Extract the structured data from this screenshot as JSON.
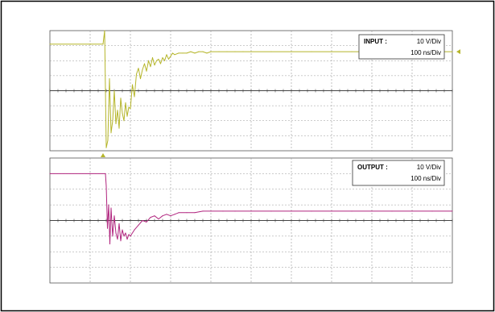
{
  "chart_data": [
    {
      "type": "line",
      "name_label": "INPUT :",
      "volts_label": "10 V/Div",
      "time_label": "100 ns/Div",
      "trace_color": "#b5b52a",
      "grid": true,
      "x_divisions": 10,
      "y_divisions": 8,
      "x_unit": "ns",
      "y_unit": "V",
      "xlim": [
        0,
        1000
      ],
      "ylim": [
        -40,
        40
      ],
      "series": [
        {
          "x": [
            0,
            100,
            132,
            136,
            140,
            144,
            148,
            152,
            156,
            160,
            164,
            168,
            172,
            176,
            180,
            184,
            188,
            192,
            196,
            200,
            205,
            210,
            215,
            220,
            225,
            230,
            235,
            240,
            245,
            250,
            255,
            260,
            265,
            270,
            275,
            280,
            285,
            290,
            295,
            300,
            305,
            310,
            320,
            330,
            340,
            350,
            360,
            370,
            380,
            390,
            400,
            420,
            440,
            460,
            480,
            500,
            550,
            600,
            650,
            700,
            750,
            800,
            850,
            900,
            950,
            1000
          ],
          "y": [
            31,
            31,
            31,
            40,
            -38,
            -33,
            8,
            -28,
            -20,
            0,
            -22,
            -13,
            -25,
            -5,
            -15,
            -20,
            -8,
            -17,
            -11,
            -12,
            4,
            -4,
            11,
            15,
            8,
            14,
            18,
            13,
            20,
            16,
            22,
            17,
            20,
            21,
            18,
            22,
            20,
            24,
            21,
            23,
            25,
            24,
            25,
            25,
            25,
            26,
            25,
            26,
            26,
            25,
            26,
            26,
            26,
            26,
            26,
            26,
            26,
            26,
            26,
            26,
            26,
            26,
            26,
            26,
            26,
            26
          ]
        }
      ]
    },
    {
      "type": "line",
      "name_label": "OUTPUT :",
      "volts_label": "10 V/Div",
      "time_label": "100 ns/Div",
      "trace_color": "#b0247e",
      "grid": true,
      "x_divisions": 10,
      "y_divisions": 8,
      "x_unit": "ns",
      "y_unit": "V",
      "xlim": [
        0,
        1000
      ],
      "ylim": [
        -40,
        40
      ],
      "series": [
        {
          "x": [
            0,
            100,
            138,
            140,
            143,
            146,
            149,
            152,
            156,
            160,
            164,
            168,
            172,
            176,
            180,
            184,
            188,
            192,
            196,
            200,
            210,
            220,
            230,
            240,
            250,
            260,
            270,
            280,
            290,
            300,
            310,
            320,
            340,
            360,
            380,
            400,
            430,
            460,
            500,
            550,
            600,
            650,
            700,
            750,
            800,
            850,
            900,
            950,
            1000
          ],
          "y": [
            30,
            30,
            30,
            22,
            -5,
            10,
            -15,
            8,
            -10,
            3,
            -8,
            -12,
            -2,
            -13,
            -6,
            -10,
            -8,
            -12,
            -9,
            -10,
            -6,
            -3,
            0,
            -1,
            2,
            3,
            1,
            3,
            4,
            3,
            4,
            5,
            5,
            5,
            6,
            6,
            6,
            6,
            6,
            6,
            6,
            6,
            6,
            6,
            6,
            6,
            6,
            6,
            6
          ]
        }
      ]
    }
  ]
}
